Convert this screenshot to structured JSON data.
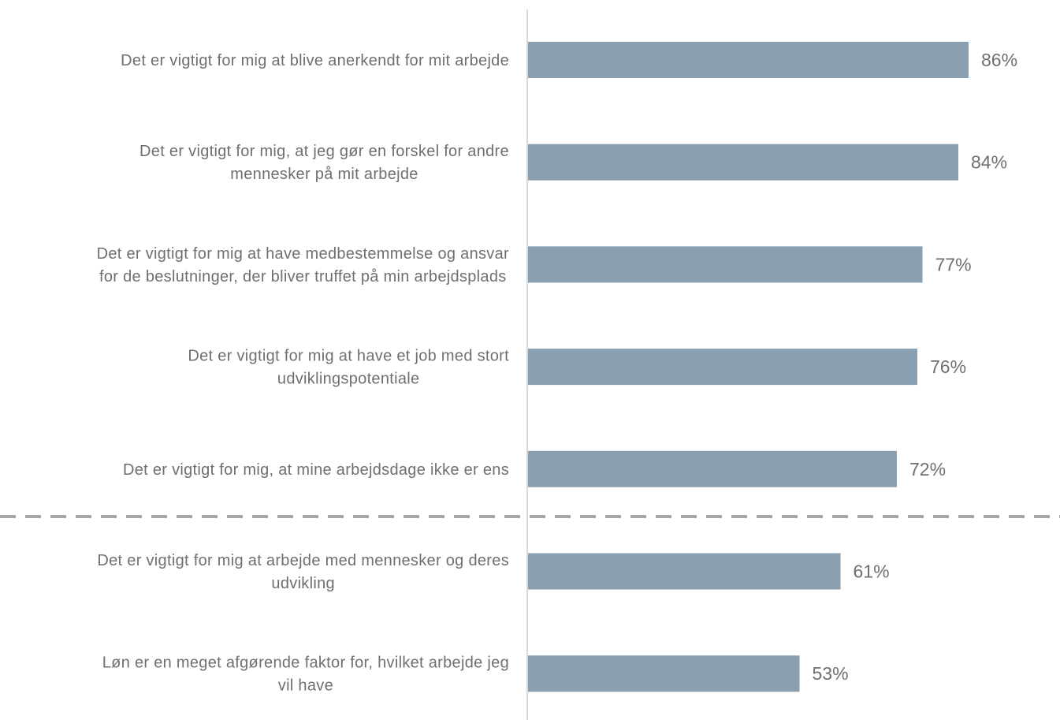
{
  "chart_data": {
    "type": "bar",
    "orientation": "horizontal",
    "categories": [
      [
        "Det er vigtigt for mig at blive anerkendt for mit arbejde"
      ],
      [
        "Det er vigtigt for mig, at jeg gør en forskel for andre",
        "mennesker på mit arbejde"
      ],
      [
        "Det er vigtigt for mig at have medbestemmelse og ansvar",
        "for de beslutninger, der bliver truffet på min arbejdsplads"
      ],
      [
        "Det er vigtigt for mig at have et job med stort",
        "udviklingspotentiale"
      ],
      [
        "Det er vigtigt for mig, at mine arbejdsdage ikke er ens"
      ],
      [
        "Det er vigtigt for mig at arbejde med mennesker og deres",
        "udvikling"
      ],
      [
        "Løn er en meget afgørende faktor for, hvilket arbejde jeg",
        "vil have"
      ]
    ],
    "values": [
      86,
      84,
      77,
      76,
      72,
      61,
      53
    ],
    "value_labels": [
      "86%",
      "84%",
      "77%",
      "76%",
      "72%",
      "61%",
      "53%"
    ],
    "unit": "%",
    "xlim": [
      0,
      100
    ],
    "bar_color": "#8aa0b0",
    "axis_color": "#d9d9d9",
    "separator": {
      "after_index": 4,
      "style": "dashed",
      "color": "#a6a6a6"
    },
    "grid": false,
    "legend": "none"
  }
}
